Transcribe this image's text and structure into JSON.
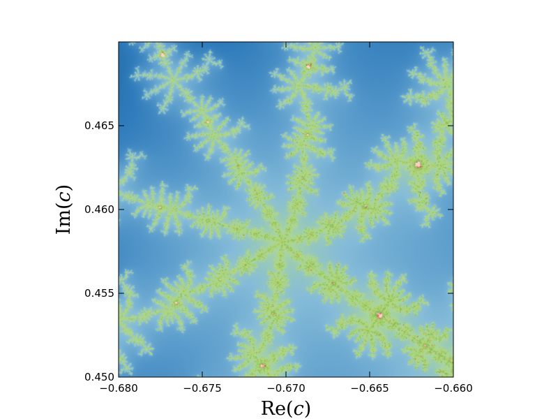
{
  "chart_data": {
    "type": "heatmap",
    "title": "",
    "xlabel_parts": {
      "prefix": "Re(",
      "var": "c",
      "suffix": ")"
    },
    "ylabel_parts": {
      "prefix": "Im(",
      "var": "c",
      "suffix": ")"
    },
    "xlim": [
      -0.68,
      -0.66
    ],
    "ylim": [
      0.45,
      0.47
    ],
    "xticks": [
      -0.68,
      -0.675,
      -0.67,
      -0.665,
      -0.66
    ],
    "xtick_labels": [
      "−0.680",
      "−0.675",
      "−0.670",
      "−0.665",
      "−0.660"
    ],
    "yticks": [
      0.45,
      0.455,
      0.46,
      0.465
    ],
    "ytick_labels": [
      "0.450",
      "0.455",
      "0.460",
      "0.465"
    ],
    "grid": false,
    "description": "Escape-time rendering of the Mandelbrot set near c = -0.6697 + 0.4581i showing a spiral of filaments with satellite minibrots",
    "colormap": [
      "#1f5e99",
      "#2f7bbb",
      "#5a9ccc",
      "#86bcd8",
      "#a8d4a0",
      "#6cbf5a",
      "#b5d66c",
      "#e0a070",
      "#d63a2a",
      "#f4d4c8"
    ],
    "features": {
      "center": [
        -0.6697,
        0.4581
      ],
      "arms": [
        {
          "angle_deg": 80,
          "length": 0.0125
        },
        {
          "angle_deg": 148,
          "length": 0.01
        },
        {
          "angle_deg": 188,
          "length": 0.0112
        },
        {
          "angle_deg": 218,
          "length": 0.0092
        },
        {
          "angle_deg": 260,
          "length": 0.0085
        },
        {
          "angle_deg": 325,
          "length": 0.0118
        },
        {
          "angle_deg": 30,
          "length": 0.0076
        },
        {
          "angle_deg": 120,
          "length": 0.0087
        }
      ],
      "minibrots": [
        [
          -0.662,
          0.4626
        ],
        [
          -0.6645,
          0.4537
        ],
        [
          -0.6712,
          0.4506
        ],
        [
          -0.6685,
          0.4686
        ],
        [
          -0.6775,
          0.4592
        ],
        [
          -0.6775,
          0.469
        ],
        [
          -0.6733,
          0.4635
        ],
        [
          -0.6748,
          0.4652
        ]
      ]
    }
  }
}
